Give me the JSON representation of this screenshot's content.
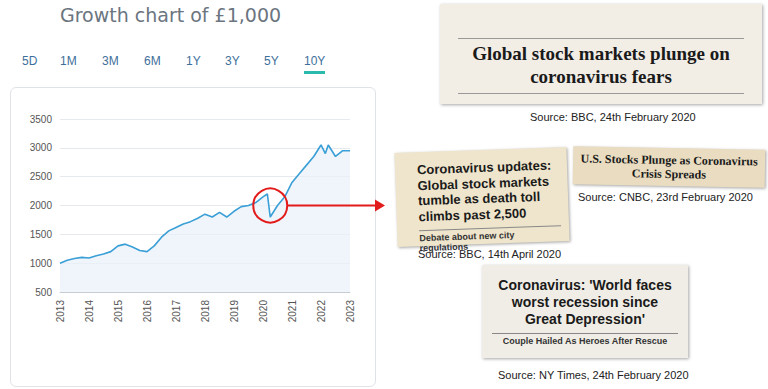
{
  "chart_data": {
    "type": "line",
    "title": "Growth chart of £1,000",
    "tabs": [
      "5D",
      "1M",
      "3M",
      "6M",
      "1Y",
      "3Y",
      "5Y",
      "10Y"
    ],
    "selected_tab": "10Y",
    "x": [
      2013.0,
      2013.25,
      2013.5,
      2013.75,
      2014.0,
      2014.25,
      2014.5,
      2014.75,
      2015.0,
      2015.25,
      2015.5,
      2015.75,
      2016.0,
      2016.25,
      2016.5,
      2016.75,
      2017.0,
      2017.25,
      2017.5,
      2017.75,
      2018.0,
      2018.25,
      2018.5,
      2018.75,
      2019.0,
      2019.25,
      2019.5,
      2019.75,
      2020.0,
      2020.15,
      2020.25,
      2020.5,
      2020.75,
      2021.0,
      2021.25,
      2021.5,
      2021.75,
      2022.0,
      2022.15,
      2022.25,
      2022.5,
      2022.75,
      2023.0
    ],
    "values": [
      1000,
      1050,
      1080,
      1100,
      1090,
      1130,
      1160,
      1200,
      1300,
      1330,
      1280,
      1220,
      1200,
      1300,
      1450,
      1560,
      1620,
      1680,
      1720,
      1780,
      1850,
      1800,
      1880,
      1800,
      1900,
      1980,
      2000,
      2050,
      2150,
      2200,
      1800,
      2000,
      2150,
      2400,
      2550,
      2700,
      2850,
      3050,
      2900,
      3050,
      2850,
      2950,
      2950
    ],
    "color": "#3a9fd6",
    "xlim": [
      2013,
      2023
    ],
    "xticks": [
      2013,
      2014,
      2015,
      2016,
      2017,
      2018,
      2019,
      2020,
      2021,
      2022,
      2023
    ],
    "ylim": [
      500,
      3500
    ],
    "yticks": [
      500,
      1000,
      1500,
      2000,
      2500,
      3000,
      3500
    ],
    "grid": true
  },
  "annotations": [
    {
      "headline": "Global stock markets plunge on coronavirus fears",
      "source": "Source: BBC, 24th February 2020"
    },
    {
      "headline": "Coronavirus updates: Global stock markets tumble as death toll climbs past 2,500",
      "subhead": "Debate about new city regulations",
      "source": "Source: BBC, 14th April 2020"
    },
    {
      "headline": "U.S. Stocks Plunge as Coronavirus Crisis Spreads",
      "source": "Source: CNBC, 23rd February 2020"
    },
    {
      "headline": "Coronavirus: 'World faces worst recession since Great Depression'",
      "subhead": "Couple Hailed As Heroes After Rescue",
      "source": "Source: NY Times, 24th February 2020"
    }
  ]
}
